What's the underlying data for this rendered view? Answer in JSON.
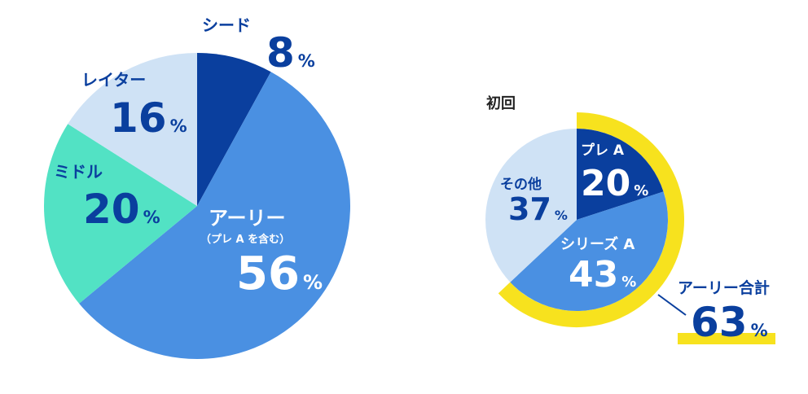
{
  "chart_data": [
    {
      "type": "pie",
      "title": "",
      "slices": [
        {
          "label": "シード",
          "value": 8,
          "color": "#0a3f9e"
        },
        {
          "label": "アーリー",
          "sublabel": "（プレ A を含む）",
          "value": 56,
          "color": "#4a90e2"
        },
        {
          "label": "ミドル",
          "value": 20,
          "color": "#52e2c4"
        },
        {
          "label": "レイター",
          "value": 16,
          "color": "#cfe2f5"
        }
      ],
      "unit": "%"
    },
    {
      "type": "pie",
      "title": "初回",
      "slices": [
        {
          "label": "プレ A",
          "value": 20,
          "color": "#0a3f9e"
        },
        {
          "label": "シリーズ A",
          "value": 43,
          "color": "#4a90e2"
        },
        {
          "label": "その他",
          "value": 37,
          "color": "#cfe2f5"
        }
      ],
      "highlight": {
        "label": "アーリー合計",
        "value": 63,
        "color": "#f7e21e"
      },
      "unit": "%"
    }
  ]
}
